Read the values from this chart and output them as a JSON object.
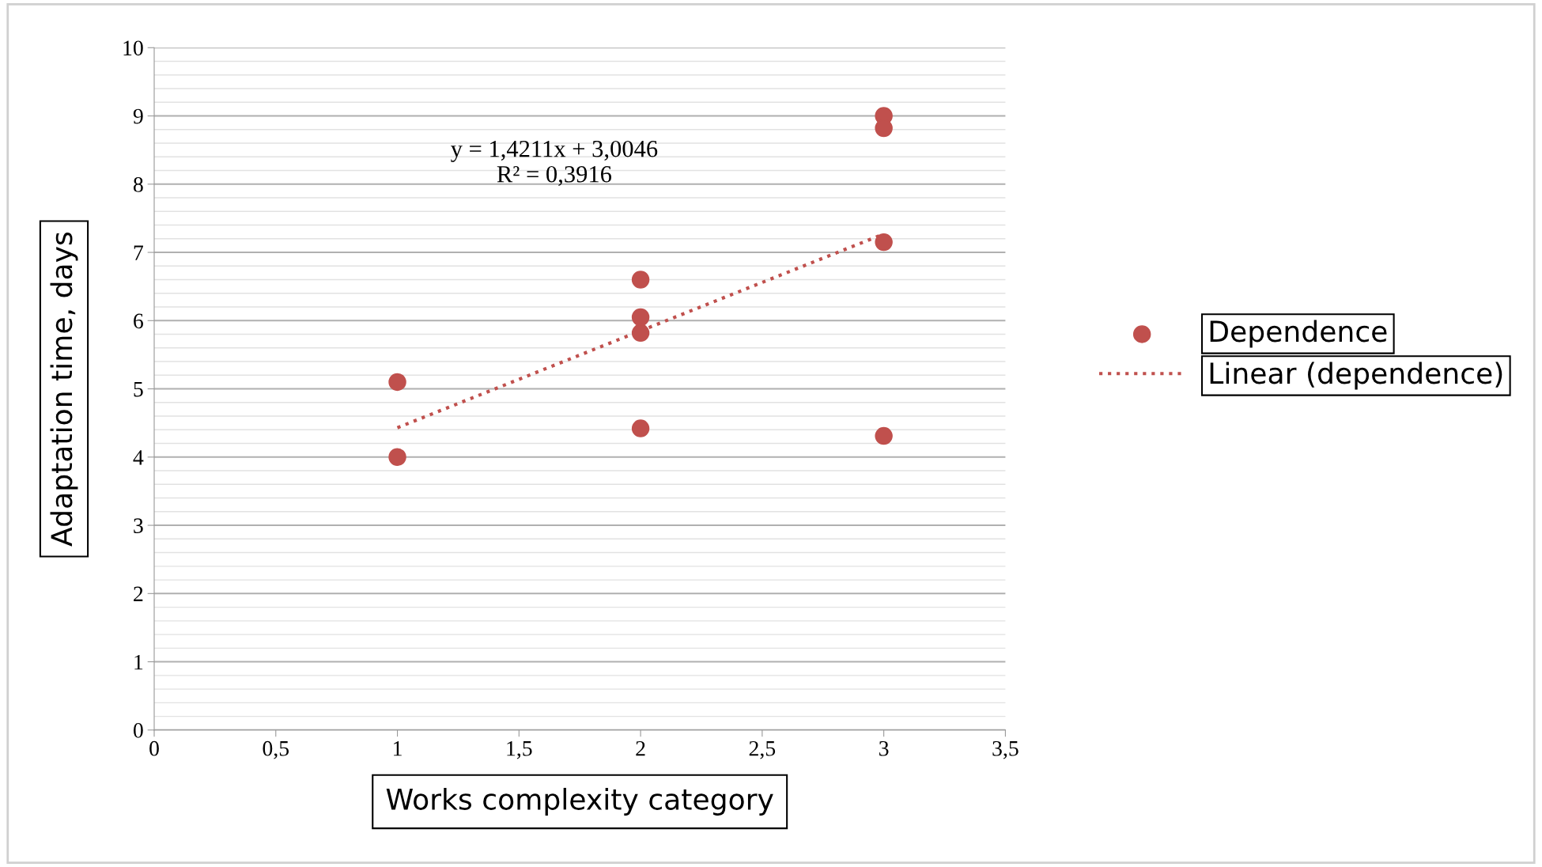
{
  "chart_data": {
    "type": "scatter",
    "xlabel": "Works complexity category",
    "ylabel": "Adaptation time, days",
    "annotations": [
      "y = 1,4211x + 3,0046\nR² = 0,3916"
    ],
    "series": [
      {
        "name": "Dependence",
        "color": "#c0504d",
        "marker": "circle",
        "x": [
          1,
          1,
          2,
          2,
          2,
          2,
          3,
          3,
          3,
          3
        ],
        "values": [
          5.1,
          4.0,
          6.6,
          6.05,
          5.82,
          4.42,
          9.0,
          8.82,
          7.15,
          4.31
        ]
      },
      {
        "name": "Linear (dependence)",
        "type": "line",
        "color": "#c0504d",
        "line_style": "dotted",
        "marker": "none",
        "x": [
          1,
          3
        ],
        "values": [
          4.43,
          7.27
        ]
      }
    ],
    "xlim": [
      0,
      3.5
    ],
    "ylim": [
      0,
      10
    ],
    "xticks": [
      0,
      {
        "value": 0.5,
        "label": "0,5"
      },
      1,
      {
        "value": 1.5,
        "label": "1,5"
      },
      2,
      {
        "value": 2.5,
        "label": "2,5"
      },
      3,
      {
        "value": 3.5,
        "label": "3,5"
      }
    ],
    "yticks": [
      0,
      1,
      2,
      3,
      4,
      5,
      6,
      7,
      8,
      9,
      10
    ],
    "grid": "y",
    "legend": "right"
  }
}
